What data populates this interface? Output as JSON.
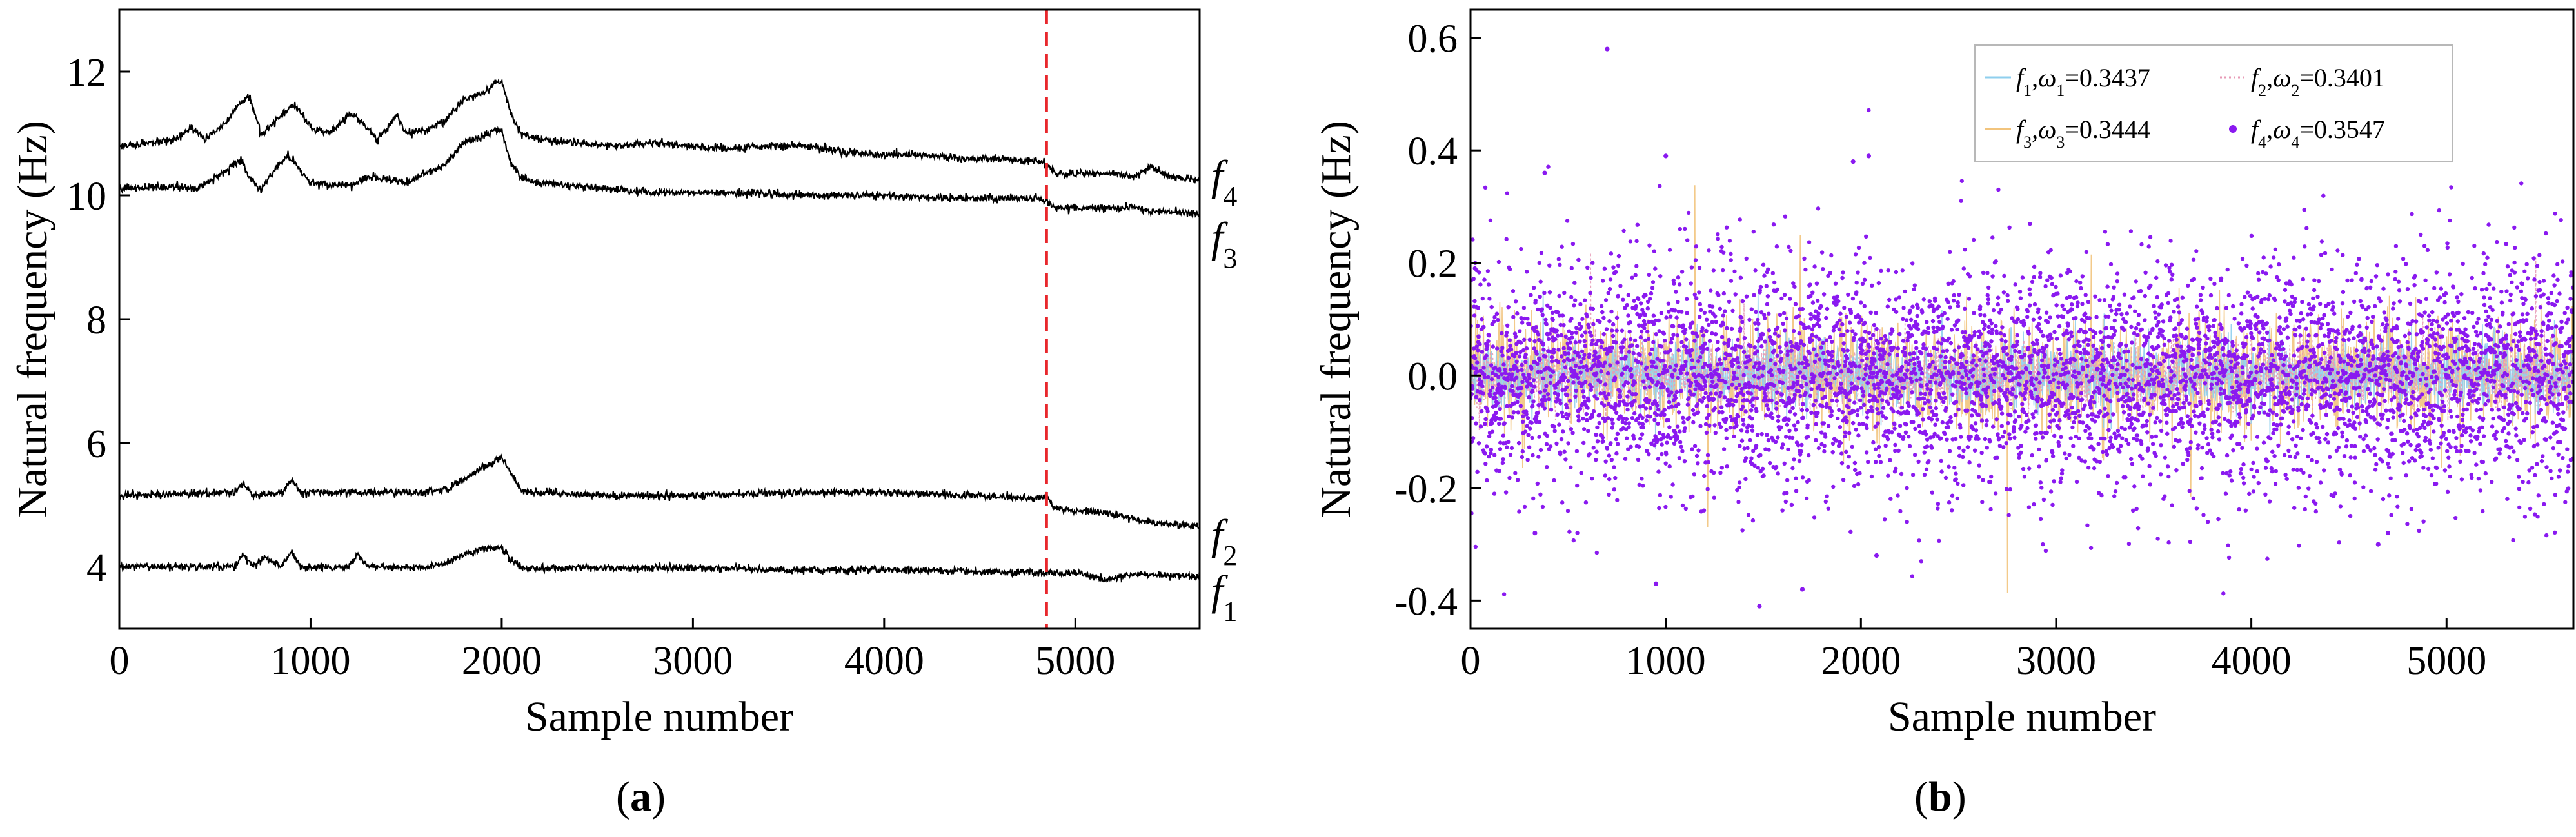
{
  "chart_data": [
    {
      "panel_label": "a",
      "type": "line",
      "xlabel": "Sample number",
      "ylabel": "Natural frequency (Hz)",
      "xlim": [
        0,
        5650
      ],
      "ylim": [
        3,
        13
      ],
      "xticks": [
        0,
        1000,
        2000,
        3000,
        4000,
        5000
      ],
      "yticks": [
        4,
        6,
        8,
        10,
        12
      ],
      "vline": {
        "x": 4850,
        "color": "#e8272c",
        "style": "dashed"
      },
      "series": [
        {
          "name": "f4",
          "label_main": "f",
          "label_sub": "4",
          "label_y": 10.3,
          "color": "#000000",
          "x": [
            0,
            200,
            300,
            380,
            450,
            560,
            640,
            680,
            740,
            820,
            880,
            920,
            1000,
            1100,
            1200,
            1250,
            1350,
            1450,
            1500,
            1600,
            1700,
            1800,
            1900,
            1960,
            2000,
            2050,
            2100,
            2200,
            2400,
            2600,
            2800,
            3000,
            3200,
            3400,
            3600,
            3800,
            4000,
            4200,
            4400,
            4600,
            4800,
            4850,
            4900,
            5000,
            5200,
            5300,
            5400,
            5500,
            5650
          ],
          "y": [
            10.8,
            10.85,
            10.9,
            11.1,
            10.9,
            11.2,
            11.5,
            11.6,
            11.0,
            11.2,
            11.4,
            11.45,
            11.1,
            11.0,
            11.3,
            11.25,
            10.9,
            11.3,
            11.0,
            11.05,
            11.2,
            11.55,
            11.65,
            11.8,
            11.85,
            11.3,
            11.0,
            10.9,
            10.85,
            10.8,
            10.85,
            10.8,
            10.75,
            10.8,
            10.8,
            10.7,
            10.65,
            10.65,
            10.6,
            10.6,
            10.55,
            10.5,
            10.35,
            10.35,
            10.35,
            10.3,
            10.45,
            10.3,
            10.25
          ]
        },
        {
          "name": "f3",
          "label_main": "f",
          "label_sub": "3",
          "label_y": 9.3,
          "color": "#000000",
          "x": [
            0,
            300,
            400,
            560,
            640,
            680,
            740,
            820,
            880,
            920,
            1000,
            1200,
            1300,
            1500,
            1700,
            1800,
            1900,
            1960,
            2000,
            2050,
            2100,
            2200,
            2400,
            2800,
            3200,
            3600,
            4000,
            4400,
            4800,
            4850,
            4900,
            5000,
            5300,
            5400,
            5650
          ],
          "y": [
            10.1,
            10.15,
            10.1,
            10.4,
            10.55,
            10.3,
            10.1,
            10.45,
            10.65,
            10.5,
            10.2,
            10.15,
            10.3,
            10.2,
            10.5,
            10.85,
            10.95,
            11.05,
            11.05,
            10.5,
            10.3,
            10.2,
            10.15,
            10.05,
            10.05,
            10.0,
            10.0,
            9.95,
            9.95,
            9.9,
            9.8,
            9.8,
            9.8,
            9.75,
            9.7
          ]
        },
        {
          "name": "f2",
          "label_main": "f",
          "label_sub": "2",
          "label_y": 4.5,
          "color": "#000000",
          "x": [
            0,
            600,
            650,
            700,
            850,
            900,
            950,
            1600,
            1700,
            1800,
            1900,
            2000,
            2050,
            2100,
            2200,
            2600,
            3000,
            3500,
            4000,
            4500,
            4800,
            4850,
            4900,
            5200,
            5400,
            5650
          ],
          "y": [
            5.15,
            5.2,
            5.35,
            5.15,
            5.2,
            5.4,
            5.2,
            5.2,
            5.25,
            5.4,
            5.6,
            5.75,
            5.5,
            5.25,
            5.2,
            5.15,
            5.15,
            5.2,
            5.2,
            5.15,
            5.1,
            5.15,
            4.95,
            4.85,
            4.7,
            4.65
          ]
        },
        {
          "name": "f1",
          "label_main": "f",
          "label_sub": "1",
          "label_y": 3.6,
          "color": "#000000",
          "x": [
            0,
            600,
            650,
            700,
            750,
            850,
            900,
            950,
            1200,
            1250,
            1300,
            1600,
            1700,
            1800,
            1900,
            2000,
            2050,
            2100,
            2200,
            3000,
            3500,
            4000,
            4500,
            4900,
            5000,
            5150,
            5300,
            5650
          ],
          "y": [
            4.0,
            4.0,
            4.2,
            4.0,
            4.15,
            4.0,
            4.25,
            4.0,
            4.0,
            4.2,
            4.0,
            4.0,
            4.05,
            4.2,
            4.3,
            4.3,
            4.1,
            3.98,
            3.98,
            3.98,
            3.95,
            3.95,
            3.92,
            3.9,
            3.9,
            3.78,
            3.88,
            3.85
          ]
        }
      ]
    },
    {
      "panel_label": "b",
      "type": "scatter",
      "xlabel": "Sample number",
      "ylabel": "Natural frequency (Hz)",
      "xlim": [
        0,
        5650
      ],
      "ylim": [
        -0.45,
        0.65
      ],
      "xticks": [
        0,
        1000,
        2000,
        3000,
        4000,
        5000
      ],
      "yticks": [
        -0.4,
        -0.2,
        0.0,
        0.2,
        0.4,
        0.6
      ],
      "ytick_labels": [
        "-0.4",
        "-0.2",
        "0.0",
        "0.2",
        "0.4",
        "0.6"
      ],
      "legend_position": "top-right",
      "n_samples": 5650,
      "series": [
        {
          "name": "f1",
          "sym": "f",
          "sub": "1",
          "omega": "ω",
          "omega_sub": "1",
          "value": "=0.3437",
          "sigma": 0.03,
          "color": "#8fcfee",
          "style": "line"
        },
        {
          "name": "f2",
          "sym": "f",
          "sub": "2",
          "omega": "ω",
          "omega_sub": "2",
          "value": "=0.3401",
          "sigma": 0.03,
          "color": "#e79ab6",
          "style": "dotted"
        },
        {
          "name": "f3",
          "sym": "f",
          "sub": "3",
          "omega": "ω",
          "omega_sub": "3",
          "value": "=0.3444",
          "sigma": 0.05,
          "color": "#f2c47d",
          "style": "line"
        },
        {
          "name": "f4",
          "sym": "f",
          "sub": "4",
          "omega": "ω",
          "omega_sub": "4",
          "value": "=0.3547",
          "sigma": 0.1,
          "color": "#8a19f0",
          "style": "dots"
        }
      ],
      "outliers": [
        {
          "x": 700,
          "y": 0.58
        },
        {
          "x": 1000,
          "y": 0.39
        },
        {
          "x": 1960,
          "y": 0.38
        },
        {
          "x": 2040,
          "y": 0.39
        },
        {
          "x": 380,
          "y": 0.36
        },
        {
          "x": 1480,
          "y": -0.41
        },
        {
          "x": 950,
          "y": -0.37
        },
        {
          "x": 1700,
          "y": -0.38
        },
        {
          "x": 4650,
          "y": -0.3
        },
        {
          "x": 4700,
          "y": -0.28
        },
        {
          "x": 2080,
          "y": -0.32
        },
        {
          "x": 330,
          "y": -0.28
        }
      ]
    }
  ],
  "captions": {
    "a": "a",
    "b": "b"
  }
}
